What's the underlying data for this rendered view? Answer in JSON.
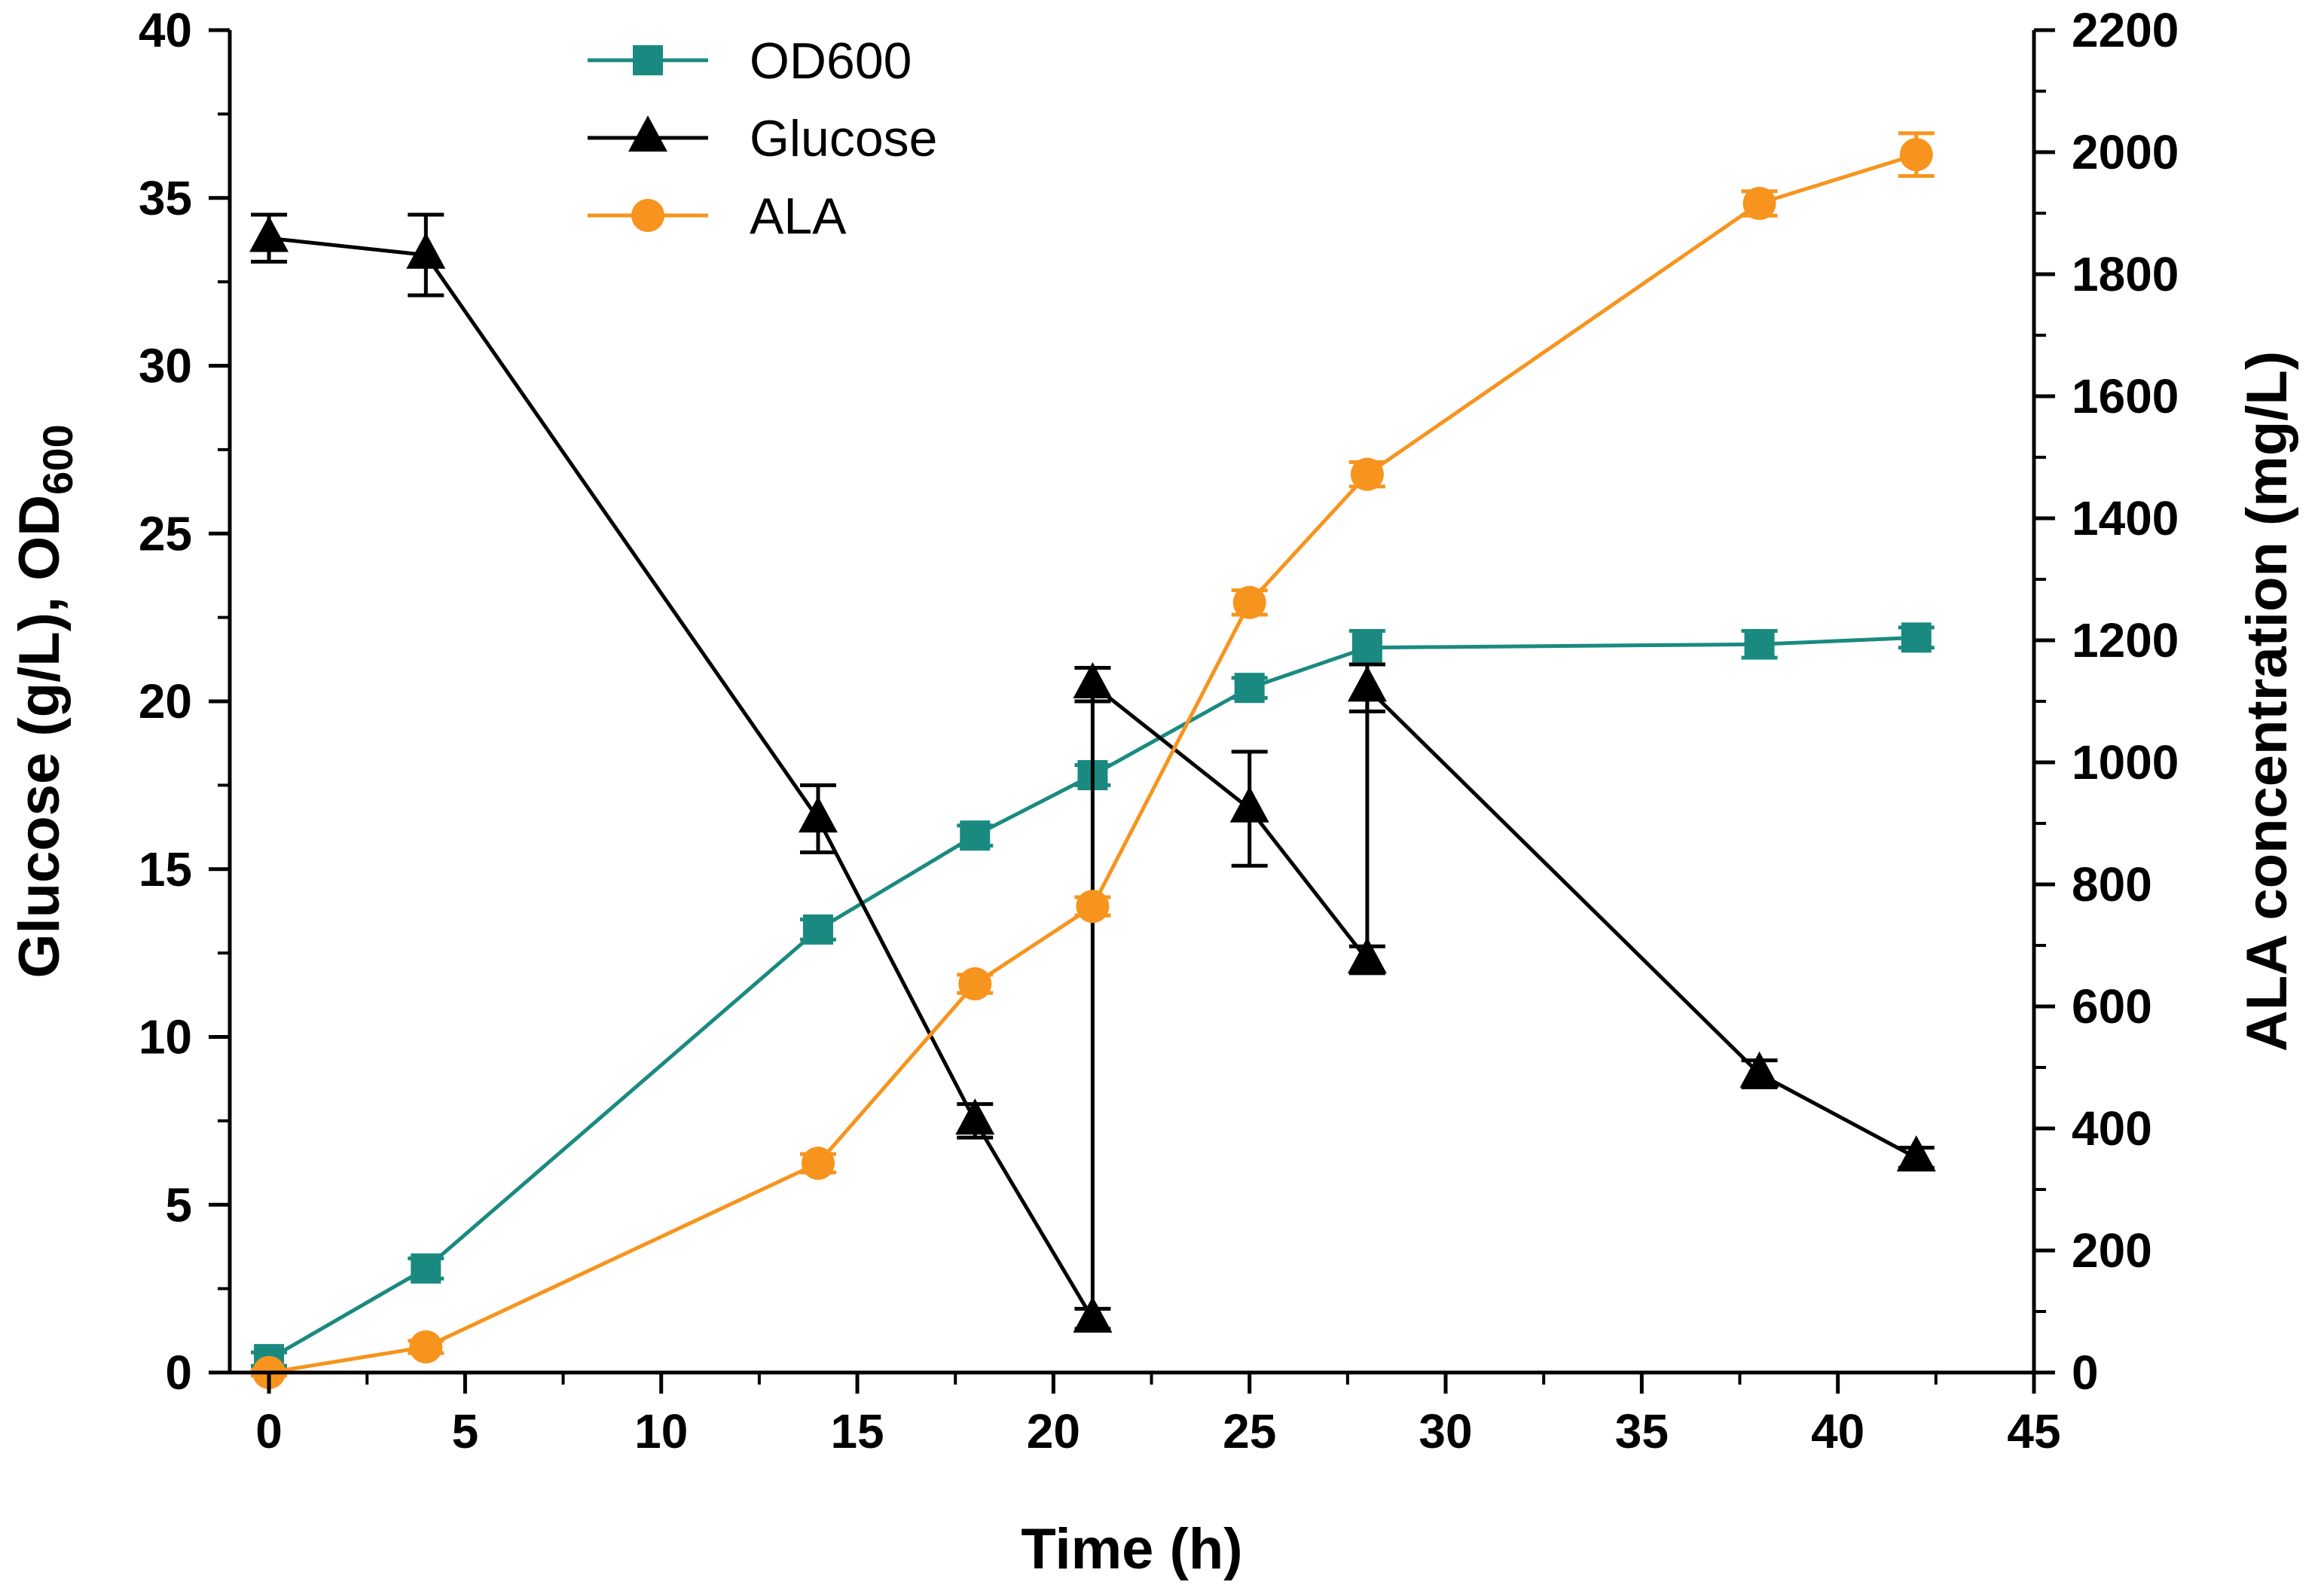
{
  "chart_data": {
    "type": "line",
    "title": "",
    "xlabel": "Time (h)",
    "ylabel_left": {
      "main": "Glucose (g/L), OD",
      "sub": "600"
    },
    "ylabel_right": "ALA concentration (mg/L)",
    "xlim": [
      -1,
      45
    ],
    "ylim_left": [
      0,
      40
    ],
    "ylim_right": [
      0,
      2200
    ],
    "x_ticks": [
      0,
      5,
      10,
      15,
      20,
      25,
      30,
      35,
      40,
      45
    ],
    "x_tick_labels": [
      "0",
      "5",
      "10",
      "15",
      "20",
      "25",
      "30",
      "35",
      "40",
      "45"
    ],
    "y_left_ticks": [
      0,
      5,
      10,
      15,
      20,
      25,
      30,
      35,
      40
    ],
    "y_left_tick_labels": [
      "0",
      "5",
      "10",
      "15",
      "20",
      "25",
      "30",
      "35",
      "40"
    ],
    "y_right_ticks": [
      0,
      200,
      400,
      600,
      800,
      1000,
      1200,
      1400,
      1600,
      1800,
      2000,
      2200
    ],
    "y_right_tick_labels": [
      "0",
      "200",
      "400",
      "600",
      "800",
      "1000",
      "1200",
      "1400",
      "1600",
      "1800",
      "2000",
      "2200"
    ],
    "grid": false,
    "legend_position": "top-center",
    "series": [
      {
        "name": "OD600",
        "axis": "left",
        "color": "#1A8A80",
        "marker": "square",
        "x": [
          0,
          4,
          14,
          18,
          21,
          25,
          28,
          38,
          42
        ],
        "y": [
          0.4,
          3.1,
          13.2,
          16.0,
          17.8,
          20.4,
          21.6,
          21.7,
          21.9
        ],
        "err": [
          0.2,
          0.3,
          0.3,
          0.3,
          0.3,
          0.3,
          0.5,
          0.4,
          0.3
        ]
      },
      {
        "name": "Glucose",
        "axis": "left",
        "color": "#000000",
        "marker": "triangle",
        "x": [
          0,
          4,
          14,
          18,
          21,
          21,
          25,
          28,
          28,
          38,
          42
        ],
        "y": [
          33.8,
          33.3,
          16.5,
          7.5,
          1.6,
          20.5,
          16.8,
          12.3,
          20.4,
          8.9,
          6.4
        ],
        "err": [
          0.7,
          1.2,
          1.0,
          0.5,
          0.3,
          0.5,
          1.7,
          0.4,
          0.7,
          0.4,
          0.3
        ]
      },
      {
        "name": "ALA",
        "axis": "right",
        "color": "#F7941D",
        "marker": "circle",
        "x": [
          0,
          4,
          14,
          18,
          21,
          25,
          28,
          38,
          42
        ],
        "y": [
          0,
          42,
          343,
          637,
          764,
          1262,
          1472,
          1916,
          1996
        ],
        "err": [
          5,
          10,
          15,
          15,
          15,
          20,
          20,
          20,
          35
        ]
      }
    ],
    "vertical_lines": [
      {
        "x": 21,
        "y_from": 1.6,
        "y_to": 20.5
      },
      {
        "x": 28,
        "y_from": 12.3,
        "y_to": 20.4
      }
    ]
  }
}
